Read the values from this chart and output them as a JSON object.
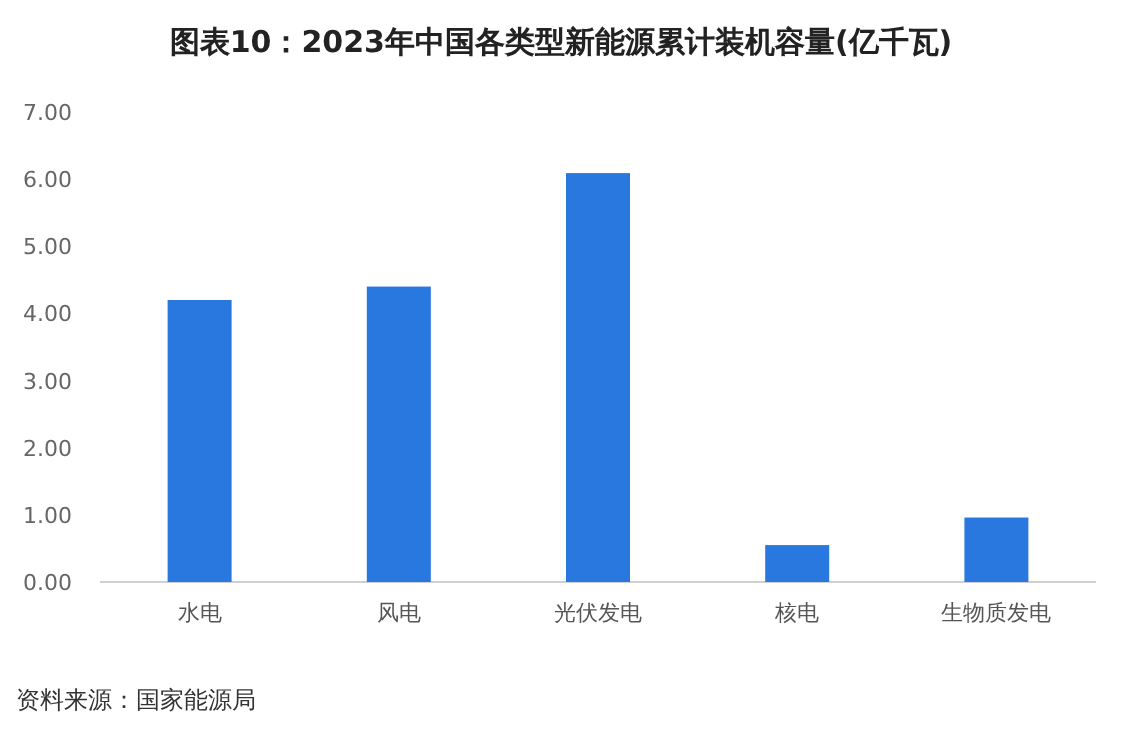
{
  "chart_data": {
    "type": "bar",
    "title": "图表10：2023年中国各类型新能源累计装机容量(亿千瓦)",
    "categories": [
      "水电",
      "风电",
      "光伏发电",
      "核电",
      "生物质发电"
    ],
    "values": [
      4.2,
      4.4,
      6.09,
      0.55,
      0.96
    ],
    "color": "#2878e0",
    "ylim": [
      0,
      7
    ],
    "yticks": [
      {
        "value": 0,
        "label": "0.00"
      },
      {
        "value": 1,
        "label": "1.00"
      },
      {
        "value": 2,
        "label": "2.00"
      },
      {
        "value": 3,
        "label": "3.00"
      },
      {
        "value": 4,
        "label": "4.00"
      },
      {
        "value": 5,
        "label": "5.00"
      },
      {
        "value": 6,
        "label": "6.00"
      },
      {
        "value": 7,
        "label": "7.00"
      }
    ],
    "annotations": [
      "资料来源：国家能源局"
    ]
  }
}
